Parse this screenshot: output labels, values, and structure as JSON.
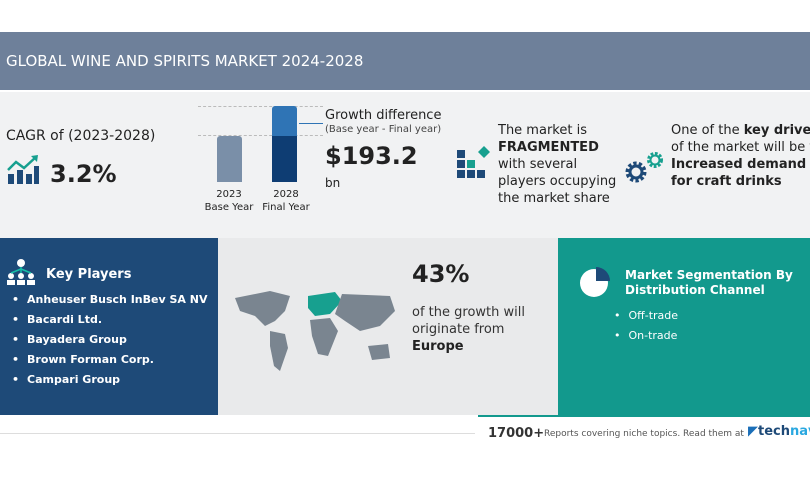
{
  "header": {
    "title": "GLOBAL WINE AND SPIRITS MARKET 2024-2028"
  },
  "cagr": {
    "label": "CAGR of (2023-2028)",
    "value": "3.2%",
    "icon": "chart-growth-icon"
  },
  "bars": {
    "base_year": "2023",
    "base_label": "Base Year",
    "final_year": "2028",
    "final_label": "Final Year"
  },
  "growth": {
    "label": "Growth difference",
    "sub": "(Base year - Final year)",
    "value": "$193.2",
    "unit": "bn"
  },
  "market": {
    "l1": "The market is",
    "l2": "FRAGMENTED",
    "l3": "with several",
    "l4": "players occupying",
    "l5": "the market share"
  },
  "drivers": {
    "l1a": "One of the ",
    "l1b": "key drivers",
    "l2": "of the market will be the",
    "l3": "Increased demand",
    "l4": "for craft drinks"
  },
  "key_players": {
    "title": "Key Players",
    "items": [
      "Anheuser Busch InBev SA NV",
      "Bacardi Ltd.",
      "Bayadera Group",
      "Brown Forman Corp.",
      "Campari Group"
    ]
  },
  "region": {
    "percent": "43%",
    "l1": "of the growth will",
    "l2": "originate from",
    "name": "Europe"
  },
  "segmentation": {
    "title1": "Market Segmentation By",
    "title2": "Distribution Channel",
    "items": [
      "Off-trade",
      "On-trade"
    ]
  },
  "footer": {
    "count": "17000+",
    "text": "Reports covering niche topics. Read them at",
    "brand1": "tech",
    "brand2": "navio"
  },
  "colors": {
    "header": "#6e809a",
    "dark_blue": "#1e4a78",
    "teal": "#12998d"
  }
}
